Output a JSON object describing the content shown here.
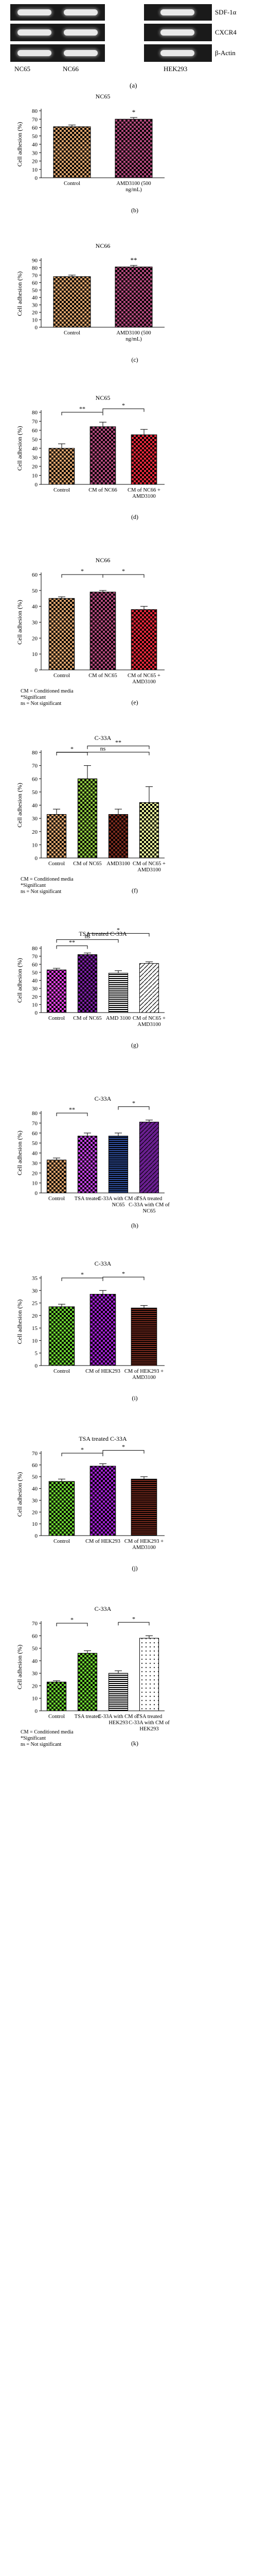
{
  "gel": {
    "row_labels": [
      "SDF-1α",
      "CXCR4",
      "β-Actin"
    ],
    "lane_labels": [
      "NC65",
      "NC66",
      "HEK293"
    ],
    "panel_letter": "(a)"
  },
  "chart_data": [
    {
      "type": "bar",
      "panel_letter": "(b)",
      "title": "NC65",
      "ylabel": "Cell adhesion (%)",
      "ylim": [
        0,
        80
      ],
      "yticks": [
        0,
        10,
        20,
        30,
        40,
        50,
        60,
        70,
        80
      ],
      "categories": [
        "Control",
        "AMD3100 (500 ng/mL)"
      ],
      "values": [
        61,
        70
      ],
      "errors": [
        2,
        2
      ],
      "bar_colors": [
        "#d8a06a",
        "#b0487a"
      ],
      "pattern": "checker",
      "brackets": [
        {
          "from": 1,
          "to": 1,
          "label": "*"
        }
      ]
    },
    {
      "type": "bar",
      "panel_letter": "(c)",
      "title": "NC66",
      "ylabel": "Cell adhesion (%)",
      "ylim": [
        0,
        90
      ],
      "yticks": [
        0,
        10,
        20,
        30,
        40,
        50,
        60,
        70,
        80,
        90
      ],
      "categories": [
        "Control",
        "AMD3100 (500 ng/mL)"
      ],
      "values": [
        68,
        81
      ],
      "errors": [
        2,
        2
      ],
      "bar_colors": [
        "#d8a06a",
        "#b0487a"
      ],
      "pattern": "checker",
      "brackets": [
        {
          "from": 1,
          "to": 1,
          "label": "**"
        }
      ]
    },
    {
      "type": "bar",
      "panel_letter": "(d)",
      "title": "NC65",
      "ylabel": "Cell adhesion (%)",
      "ylim": [
        0,
        80
      ],
      "yticks": [
        0,
        10,
        20,
        30,
        40,
        50,
        60,
        70,
        80
      ],
      "categories": [
        "Control",
        "CM of NC66",
        "CM of NC66 + AMD3100"
      ],
      "values": [
        40,
        64,
        55
      ],
      "errors": [
        5,
        5,
        6
      ],
      "bar_colors": [
        "#d8a06a",
        "#b0487a",
        "#e8283a"
      ],
      "pattern": "checker",
      "brackets": [
        {
          "from": 0,
          "to": 1,
          "label": "**"
        },
        {
          "from": 1,
          "to": 2,
          "label": "*"
        }
      ]
    },
    {
      "type": "bar",
      "panel_letter": "(e)",
      "title": "NC66",
      "ylabel": "Cell adhesion (%)",
      "ylim": [
        0,
        60
      ],
      "yticks": [
        0,
        10,
        20,
        30,
        40,
        50,
        60
      ],
      "categories": [
        "Control",
        "CM of NC65",
        "CM of NC65 + AMD3100"
      ],
      "values": [
        45,
        49,
        38
      ],
      "errors": [
        1,
        1,
        2
      ],
      "bar_colors": [
        "#d8a06a",
        "#b0487a",
        "#e8283a"
      ],
      "pattern": "checker",
      "brackets": [
        {
          "from": 0,
          "to": 1,
          "label": "*"
        },
        {
          "from": 1,
          "to": 2,
          "label": "*"
        }
      ],
      "notes": [
        "CM = Conditioned media",
        "*Significant",
        "ns = Not significant"
      ]
    },
    {
      "type": "bar",
      "panel_letter": "(f)",
      "title": "C-33A",
      "ylabel": "Cell adhesion (%)",
      "ylim": [
        0,
        80
      ],
      "yticks": [
        0,
        10,
        20,
        30,
        40,
        50,
        60,
        70,
        80
      ],
      "categories": [
        "Control",
        "CM of NC65",
        "AMD3100",
        "CM of NC65 + AMD3100"
      ],
      "values": [
        33,
        60,
        33,
        42
      ],
      "errors": [
        4,
        10,
        4,
        12
      ],
      "bar_colors": [
        "#d8a06a",
        "#8dc63f",
        "#7a2b1e",
        "#e8f09a"
      ],
      "pattern": "checker",
      "brackets": [
        {
          "from": 0,
          "to": 1,
          "label": "*"
        },
        {
          "from": 0,
          "to": 3,
          "label": "ns"
        },
        {
          "from": 1,
          "to": 3,
          "label": "**"
        }
      ],
      "notes": [
        "CM = Conditioned media",
        "*Significant",
        "ns = Not significant"
      ]
    },
    {
      "type": "bar",
      "panel_letter": "(g)",
      "title": "TSA treated C-33A",
      "ylabel": "Cell adhesion (%)",
      "ylim": [
        0,
        80
      ],
      "yticks": [
        0,
        10,
        20,
        30,
        40,
        50,
        60,
        70,
        80
      ],
      "categories": [
        "Control",
        "CM of NC65",
        "AMD 3100",
        "CM of NC65 + AMD3100"
      ],
      "values": [
        53,
        72,
        49,
        61
      ],
      "errors": [
        2,
        2,
        3,
        2
      ],
      "bar_colors": [
        "#e040e0",
        "#7a1fa0",
        "#ffffff",
        "#ffffff"
      ],
      "pattern": "diag",
      "brackets": [
        {
          "from": 0,
          "to": 1,
          "label": "**"
        },
        {
          "from": 0,
          "to": 2,
          "label": "ns"
        },
        {
          "from": 1,
          "to": 3,
          "label": "*"
        }
      ]
    },
    {
      "type": "bar",
      "panel_letter": "(h)",
      "title": "C-33A",
      "ylabel": "Cell adhesion (%)",
      "ylim": [
        0,
        80
      ],
      "yticks": [
        0,
        10,
        20,
        30,
        40,
        50,
        60,
        70,
        80
      ],
      "categories": [
        "Control",
        "TSA treated",
        "C-33A with CM of NC65",
        "TSA treated C-33A with CM of NC65"
      ],
      "values": [
        33,
        57,
        57,
        71
      ],
      "errors": [
        2,
        3,
        3,
        2
      ],
      "bar_colors": [
        "#d8a06a",
        "#c040e0",
        "#3050a0",
        "#6a1f90"
      ],
      "pattern": "mixed",
      "brackets": [
        {
          "from": 0,
          "to": 1,
          "label": "**"
        },
        {
          "from": 2,
          "to": 3,
          "label": "*"
        }
      ]
    },
    {
      "type": "bar",
      "panel_letter": "(i)",
      "title": "C-33A",
      "ylabel": "Cell adhesion (%)",
      "ylim": [
        0,
        35
      ],
      "yticks": [
        0,
        5,
        10,
        15,
        20,
        25,
        30,
        35
      ],
      "categories": [
        "Control",
        "CM of HEK293",
        "CM of HEK293 + AMD3100"
      ],
      "values": [
        23.5,
        28.5,
        23
      ],
      "errors": [
        1,
        1.5,
        1
      ],
      "bar_colors": [
        "#6ad030",
        "#a020d0",
        "#7a2b1e"
      ],
      "pattern": "mixed2",
      "brackets": [
        {
          "from": 0,
          "to": 1,
          "label": "*"
        },
        {
          "from": 1,
          "to": 2,
          "label": "*"
        }
      ]
    },
    {
      "type": "bar",
      "panel_letter": "(j)",
      "title": "TSA treated C-33A",
      "ylabel": "Cell adhesion (%)",
      "ylim": [
        0,
        70
      ],
      "yticks": [
        0,
        10,
        20,
        30,
        40,
        50,
        60,
        70
      ],
      "categories": [
        "Control",
        "CM of HEK293",
        "CM of HEK293 + AMD3100"
      ],
      "values": [
        46,
        59,
        48
      ],
      "errors": [
        2,
        2,
        2
      ],
      "bar_colors": [
        "#6ad030",
        "#a020d0",
        "#7a2b1e"
      ],
      "pattern": "mixed2",
      "brackets": [
        {
          "from": 0,
          "to": 1,
          "label": "*"
        },
        {
          "from": 1,
          "to": 2,
          "label": "*"
        }
      ]
    },
    {
      "type": "bar",
      "panel_letter": "(k)",
      "title": "C-33A",
      "ylabel": "Cell adhesion (%)",
      "ylim": [
        0,
        70
      ],
      "yticks": [
        0,
        10,
        20,
        30,
        40,
        50,
        60,
        70
      ],
      "categories": [
        "Control",
        "TSA treated",
        "C-33A with CM of HEK293",
        "TSA treated C-33A with CM of HEK293"
      ],
      "values": [
        23,
        46,
        30,
        58
      ],
      "errors": [
        1,
        2,
        2,
        2
      ],
      "bar_colors": [
        "#6ad030",
        "#6ad030",
        "#ffffff",
        "#ffffff"
      ],
      "pattern": "mixed3",
      "brackets": [
        {
          "from": 0,
          "to": 1,
          "label": "*"
        },
        {
          "from": 2,
          "to": 3,
          "label": "*"
        }
      ],
      "notes": [
        "CM = Conditioned media",
        "*Significant",
        "ns = Not significant"
      ]
    }
  ]
}
